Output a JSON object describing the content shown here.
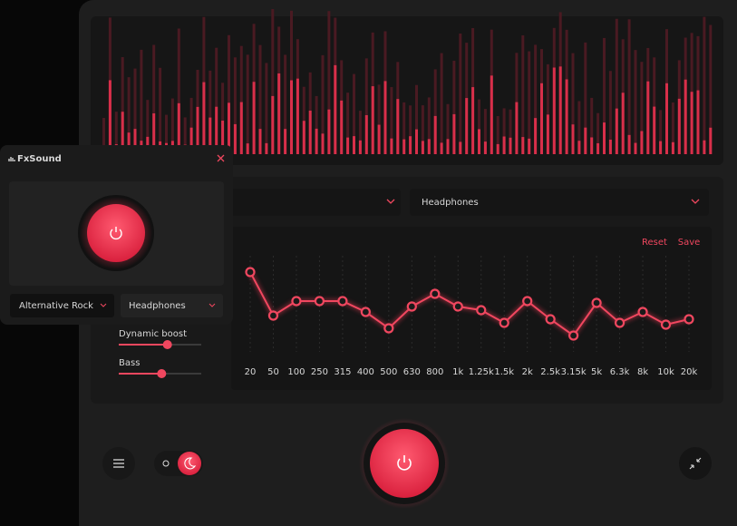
{
  "app": {
    "name": "FxSound"
  },
  "mini": {
    "preset": "Alternative Rock",
    "output": "Headphones"
  },
  "main": {
    "output": "Headphones"
  },
  "eq": {
    "reset": "Reset",
    "save": "Save",
    "bands": [
      "20",
      "50",
      "100",
      "250",
      "315",
      "400",
      "500",
      "630",
      "800",
      "1k",
      "1.25k",
      "1.5k",
      "2k",
      "2.5k",
      "3.15k",
      "5k",
      "6.3k",
      "8k",
      "10k",
      "20k"
    ],
    "gains": [
      10,
      -2,
      2,
      2,
      2,
      -1,
      -5.5,
      0.5,
      4,
      0.5,
      -0.5,
      -4,
      2,
      -3,
      -7.5,
      1.5,
      -4,
      -1,
      -4.5,
      -3
    ]
  },
  "effects": [
    {
      "label": "Dynamic boost",
      "value": 59
    },
    {
      "label": "Bass",
      "value": 52
    }
  ]
}
